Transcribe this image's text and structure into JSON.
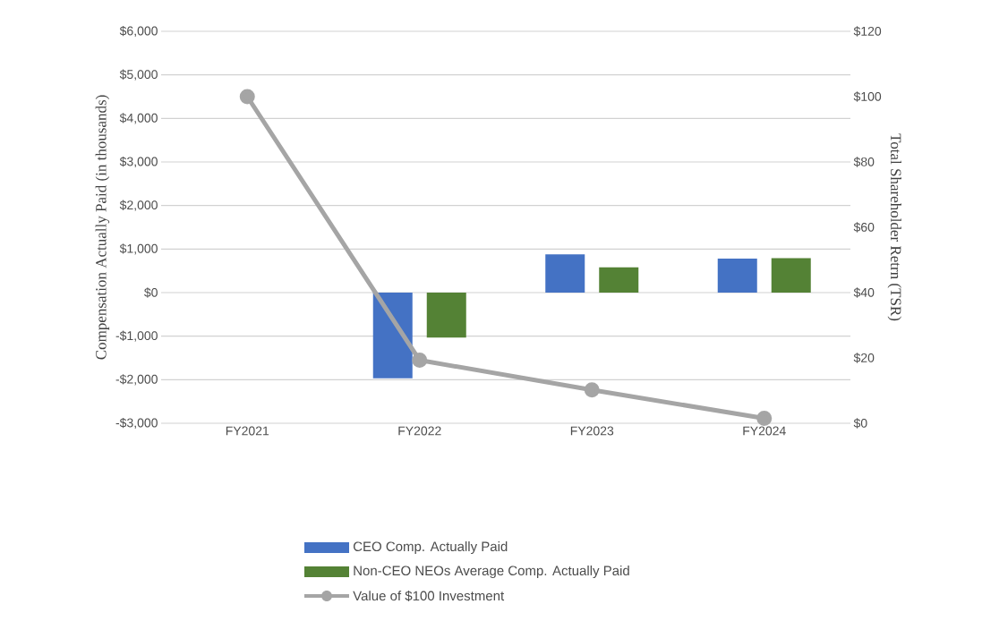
{
  "chart_data": {
    "type": "bar",
    "ylabel": "Compensation Actually Paid (in thousands)",
    "y2label": "Total Shareholder Retrn (TSR)",
    "categories": [
      "FY2021",
      "FY2022",
      "FY2023",
      "FY2024"
    ],
    "series": [
      {
        "name": "CEO Comp. Actually Paid",
        "color": "#4472c4",
        "values": [
          null,
          -1970,
          880,
          780
        ]
      },
      {
        "name": "Non-CEO NEOs Average Comp. Actually Paid",
        "color": "#548235",
        "values": [
          null,
          -1030,
          580,
          790
        ]
      },
      {
        "name": "Value of $100 Investment",
        "type": "line",
        "axis": "y2",
        "color": "#a5a5a5",
        "values": [
          100,
          19.3,
          10.2,
          1.5
        ]
      }
    ],
    "ylim": [
      -3000,
      6000
    ],
    "yticks": [
      {
        "value": -3000,
        "label": "-$3,000"
      },
      {
        "value": -2000,
        "label": "-$2,000"
      },
      {
        "value": -1000,
        "label": "-$1,000"
      },
      {
        "value": 0,
        "label": "$0"
      },
      {
        "value": 1000,
        "label": "$1,000"
      },
      {
        "value": 2000,
        "label": "$2,000"
      },
      {
        "value": 3000,
        "label": "$3,000"
      },
      {
        "value": 4000,
        "label": "$4,000"
      },
      {
        "value": 5000,
        "label": "$5,000"
      },
      {
        "value": 6000,
        "label": "$6,000"
      }
    ],
    "y2lim": [
      0,
      120
    ],
    "y2ticks": [
      {
        "value": 0,
        "label": "$0"
      },
      {
        "value": 20,
        "label": "$20"
      },
      {
        "value": 40,
        "label": "$40"
      },
      {
        "value": 60,
        "label": "$60"
      },
      {
        "value": 80,
        "label": "$80"
      },
      {
        "value": 100,
        "label": "$100"
      },
      {
        "value": 120,
        "label": "$120"
      }
    ],
    "grid": "y",
    "legend": "bottom",
    "marker": "circle",
    "line_style": "solid"
  }
}
